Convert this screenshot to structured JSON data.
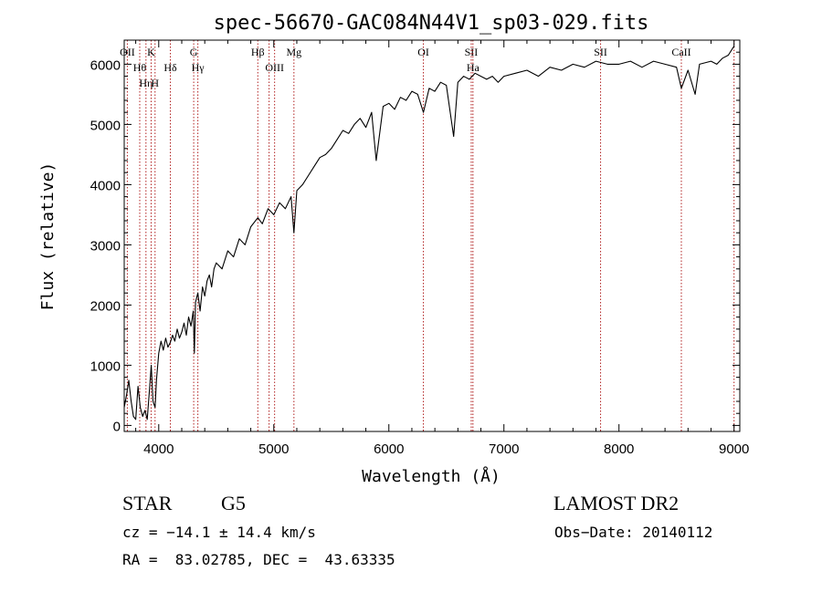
{
  "chart_data": {
    "type": "line",
    "title": "spec-56670-GAC084N44V1_sp03-029.fits",
    "xlabel": "Wavelength (Å)",
    "ylabel": "Flux (relative)",
    "xlim": [
      3700,
      9050
    ],
    "ylim": [
      -100,
      6400
    ],
    "xticks": [
      4000,
      5000,
      6000,
      7000,
      8000,
      9000
    ],
    "yticks": [
      0,
      1000,
      2000,
      3000,
      4000,
      5000,
      6000
    ],
    "grid": false,
    "series": [
      {
        "name": "flux",
        "x": [
          3700,
          3720,
          3740,
          3760,
          3780,
          3800,
          3820,
          3840,
          3860,
          3880,
          3900,
          3920,
          3935,
          3950,
          3968,
          3980,
          4000,
          4020,
          4040,
          4060,
          4080,
          4101,
          4120,
          4140,
          4160,
          4180,
          4200,
          4220,
          4240,
          4260,
          4280,
          4300,
          4310,
          4320,
          4340,
          4360,
          4380,
          4400,
          4420,
          4440,
          4460,
          4480,
          4500,
          4550,
          4600,
          4650,
          4700,
          4750,
          4800,
          4861,
          4900,
          4950,
          5000,
          5050,
          5100,
          5150,
          5175,
          5200,
          5250,
          5300,
          5350,
          5400,
          5450,
          5500,
          5550,
          5600,
          5650,
          5700,
          5750,
          5800,
          5850,
          5890,
          5950,
          6000,
          6050,
          6100,
          6150,
          6200,
          6250,
          6300,
          6350,
          6400,
          6450,
          6500,
          6563,
          6600,
          6650,
          6700,
          6750,
          6800,
          6850,
          6900,
          6950,
          7000,
          7100,
          7200,
          7300,
          7400,
          7500,
          7600,
          7700,
          7800,
          7900,
          8000,
          8100,
          8200,
          8300,
          8400,
          8500,
          8542,
          8600,
          8662,
          8700,
          8800,
          8850,
          8900,
          8950,
          9000
        ],
        "values": [
          300,
          500,
          750,
          400,
          150,
          100,
          650,
          300,
          150,
          250,
          100,
          600,
          1000,
          400,
          300,
          750,
          1200,
          1400,
          1250,
          1450,
          1300,
          1380,
          1500,
          1400,
          1600,
          1450,
          1550,
          1700,
          1500,
          1800,
          1650,
          1900,
          1200,
          2050,
          2200,
          1900,
          2300,
          2150,
          2400,
          2500,
          2300,
          2600,
          2700,
          2600,
          2900,
          2800,
          3100,
          3000,
          3300,
          3450,
          3350,
          3600,
          3500,
          3700,
          3600,
          3800,
          3200,
          3900,
          4000,
          4150,
          4300,
          4450,
          4500,
          4600,
          4750,
          4900,
          4850,
          5000,
          5100,
          4950,
          5200,
          4400,
          5300,
          5350,
          5250,
          5450,
          5400,
          5550,
          5500,
          5200,
          5600,
          5550,
          5700,
          5650,
          4800,
          5700,
          5800,
          5750,
          5850,
          5800,
          5750,
          5800,
          5700,
          5800,
          5850,
          5900,
          5800,
          5950,
          5900,
          6000,
          5950,
          6050,
          6000,
          6000,
          6050,
          5950,
          6050,
          6000,
          5950,
          5600,
          5900,
          5500,
          6000,
          6050,
          6000,
          6100,
          6150,
          6300
        ]
      }
    ],
    "lines": [
      {
        "x": 3727,
        "labels": [
          "OII"
        ]
      },
      {
        "x": 3835,
        "labels": [
          "Hθ"
        ]
      },
      {
        "x": 3889,
        "labels": [
          "Hη"
        ]
      },
      {
        "x": 3934,
        "labels": [
          "K"
        ]
      },
      {
        "x": 3968,
        "labels": [
          "H"
        ]
      },
      {
        "x": 4101,
        "labels": [
          "Hδ"
        ]
      },
      {
        "x": 4304,
        "labels": [
          "G"
        ]
      },
      {
        "x": 4340,
        "labels": [
          "Hγ"
        ]
      },
      {
        "x": 4861,
        "labels": [
          "Hβ"
        ]
      },
      {
        "x": 4959,
        "labels": []
      },
      {
        "x": 5007,
        "labels": [
          "OIII"
        ]
      },
      {
        "x": 5175,
        "labels": [
          "Mg"
        ]
      },
      {
        "x": 6300,
        "labels": [
          "OI"
        ]
      },
      {
        "x": 6716,
        "labels": [
          "SII"
        ]
      },
      {
        "x": 6731,
        "labels": [
          "Ha"
        ]
      },
      {
        "x": 7840,
        "labels": [
          "SII"
        ]
      },
      {
        "x": 8542,
        "labels": [
          "CaII"
        ]
      },
      {
        "x": 9000,
        "labels": []
      }
    ]
  },
  "footer": {
    "class_label": "STAR",
    "subclass": "G5",
    "survey": "LAMOST DR2",
    "cz": "cz = −14.1 ± 14.4 km/s",
    "obs_date": "Obs−Date: 20140112",
    "coords": "RA =  83.02785, DEC =  43.63335"
  },
  "colors": {
    "axis": "#000000",
    "spectrum": "#000000",
    "line_marker": "#b22222"
  }
}
